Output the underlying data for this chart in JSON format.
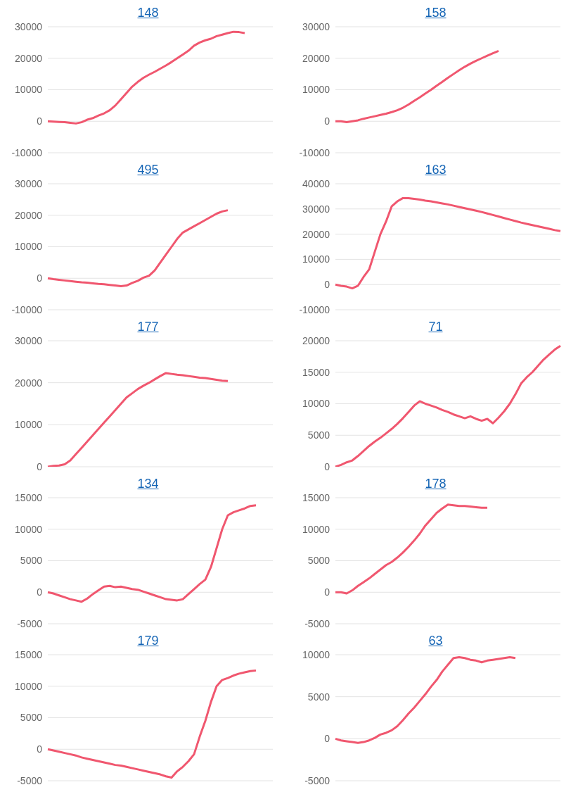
{
  "chart_data": [
    {
      "type": "line",
      "title": "148",
      "color": "#f0576f",
      "grid": "y",
      "tick_labels": "y",
      "marker": "none",
      "ylim": [
        -10000,
        30000
      ],
      "yticks": [
        -10000,
        0,
        10000,
        20000,
        30000
      ],
      "categories": [
        null,
        null,
        null,
        null,
        null,
        null,
        null,
        null,
        null,
        null,
        null,
        null,
        null,
        null,
        null,
        null,
        null,
        null,
        null,
        null,
        null,
        null,
        null,
        null,
        null,
        null,
        null,
        null,
        null,
        null,
        null,
        null,
        null,
        null,
        null,
        null,
        null,
        null,
        null,
        null,
        null
      ],
      "values": [
        0,
        -100,
        -200,
        -300,
        -500,
        -700,
        -300,
        500,
        1000,
        1800,
        2500,
        3500,
        5000,
        7000,
        9000,
        11000,
        12500,
        13800,
        14800,
        15700,
        16700,
        17700,
        18800,
        20000,
        21200,
        22400,
        24000,
        25000,
        25700,
        26200,
        27000,
        27500,
        28000,
        28400,
        28300,
        28000,
        null,
        null,
        null,
        null,
        null
      ]
    },
    {
      "type": "line",
      "title": "158",
      "color": "#f0576f",
      "grid": "y",
      "tick_labels": "y",
      "marker": "none",
      "ylim": [
        -10000,
        30000
      ],
      "yticks": [
        -10000,
        0,
        10000,
        20000,
        30000
      ],
      "categories": [
        null,
        null,
        null,
        null,
        null,
        null,
        null,
        null,
        null,
        null,
        null,
        null,
        null,
        null,
        null,
        null,
        null,
        null,
        null,
        null,
        null,
        null,
        null,
        null,
        null,
        null,
        null,
        null,
        null,
        null,
        null,
        null,
        null,
        null,
        null,
        null,
        null,
        null,
        null,
        null,
        null
      ],
      "values": [
        0,
        0,
        -300,
        0,
        300,
        800,
        1200,
        1600,
        2000,
        2400,
        2900,
        3500,
        4300,
        5300,
        6500,
        7600,
        8800,
        10000,
        11300,
        12500,
        13800,
        15000,
        16200,
        17300,
        18300,
        19200,
        20000,
        20800,
        21600,
        22300,
        null,
        null,
        null,
        null,
        null,
        null,
        null,
        null,
        null,
        null,
        null
      ]
    },
    {
      "type": "line",
      "title": "495",
      "color": "#f0576f",
      "grid": "y",
      "tick_labels": "y",
      "marker": "none",
      "ylim": [
        -10000,
        30000
      ],
      "yticks": [
        -10000,
        0,
        10000,
        20000,
        30000
      ],
      "categories": [
        null,
        null,
        null,
        null,
        null,
        null,
        null,
        null,
        null,
        null,
        null,
        null,
        null,
        null,
        null,
        null,
        null,
        null,
        null,
        null,
        null,
        null,
        null,
        null,
        null,
        null,
        null,
        null,
        null,
        null,
        null,
        null,
        null,
        null,
        null,
        null,
        null,
        null,
        null,
        null,
        null
      ],
      "values": [
        0,
        -300,
        -500,
        -700,
        -900,
        -1100,
        -1300,
        -1400,
        -1600,
        -1800,
        -1900,
        -2100,
        -2300,
        -2500,
        -2300,
        -1500,
        -800,
        200,
        800,
        2500,
        5000,
        7500,
        10000,
        12500,
        14500,
        15500,
        16500,
        17500,
        18500,
        19500,
        20500,
        21200,
        21600,
        null,
        null,
        null,
        null,
        null,
        null,
        null,
        null
      ]
    },
    {
      "type": "line",
      "title": "163",
      "color": "#f0576f",
      "grid": "y",
      "tick_labels": "y",
      "marker": "none",
      "ylim": [
        -10000,
        40000
      ],
      "yticks": [
        -10000,
        0,
        10000,
        20000,
        30000,
        40000
      ],
      "categories": [
        null,
        null,
        null,
        null,
        null,
        null,
        null,
        null,
        null,
        null,
        null,
        null,
        null,
        null,
        null,
        null,
        null,
        null,
        null,
        null,
        null,
        null,
        null,
        null,
        null,
        null,
        null,
        null,
        null,
        null,
        null,
        null,
        null,
        null,
        null,
        null,
        null,
        null,
        null,
        null,
        null
      ],
      "values": [
        0,
        -500,
        -800,
        -1500,
        -500,
        3000,
        6000,
        13000,
        20000,
        25000,
        31000,
        33000,
        34300,
        34300,
        34000,
        33700,
        33300,
        33000,
        32600,
        32200,
        31800,
        31300,
        30800,
        30300,
        29800,
        29300,
        28800,
        28200,
        27600,
        27000,
        26400,
        25800,
        25200,
        24600,
        24100,
        23600,
        23100,
        22600,
        22100,
        21600,
        21200
      ]
    },
    {
      "type": "line",
      "title": "177",
      "color": "#f0576f",
      "grid": "y",
      "tick_labels": "y",
      "marker": "none",
      "ylim": [
        0,
        30000
      ],
      "yticks": [
        0,
        10000,
        20000,
        30000
      ],
      "categories": [
        null,
        null,
        null,
        null,
        null,
        null,
        null,
        null,
        null,
        null,
        null,
        null,
        null,
        null,
        null,
        null,
        null,
        null,
        null,
        null,
        null,
        null,
        null,
        null,
        null,
        null,
        null,
        null,
        null,
        null,
        null,
        null,
        null,
        null,
        null,
        null,
        null,
        null,
        null,
        null,
        null
      ],
      "values": [
        0,
        200,
        300,
        600,
        1500,
        3000,
        4500,
        6000,
        7500,
        9000,
        10500,
        12000,
        13500,
        15000,
        16500,
        17500,
        18500,
        19300,
        20000,
        20800,
        21600,
        22300,
        22100,
        21900,
        21800,
        21600,
        21400,
        21200,
        21100,
        20900,
        20700,
        20500,
        20400,
        null,
        null,
        null,
        null,
        null,
        null,
        null,
        null
      ]
    },
    {
      "type": "line",
      "title": "71",
      "color": "#f0576f",
      "grid": "y",
      "tick_labels": "y",
      "marker": "none",
      "ylim": [
        0,
        20000
      ],
      "yticks": [
        0,
        5000,
        10000,
        15000,
        20000
      ],
      "categories": [
        null,
        null,
        null,
        null,
        null,
        null,
        null,
        null,
        null,
        null,
        null,
        null,
        null,
        null,
        null,
        null,
        null,
        null,
        null,
        null,
        null,
        null,
        null,
        null,
        null,
        null,
        null,
        null,
        null,
        null,
        null,
        null,
        null,
        null,
        null,
        null,
        null,
        null,
        null,
        null,
        null
      ],
      "values": [
        0,
        300,
        700,
        1000,
        1700,
        2500,
        3300,
        4000,
        4600,
        5300,
        6000,
        6800,
        7700,
        8700,
        9700,
        10400,
        10000,
        9700,
        9400,
        9000,
        8700,
        8300,
        8000,
        7700,
        8000,
        7600,
        7300,
        7600,
        6900,
        7800,
        8800,
        10000,
        11500,
        13200,
        14200,
        15000,
        16000,
        17000,
        17800,
        18600,
        19200
      ]
    },
    {
      "type": "line",
      "title": "134",
      "color": "#f0576f",
      "grid": "y",
      "tick_labels": "y",
      "marker": "none",
      "ylim": [
        -5000,
        15000
      ],
      "yticks": [
        -5000,
        0,
        5000,
        10000,
        15000
      ],
      "categories": [
        null,
        null,
        null,
        null,
        null,
        null,
        null,
        null,
        null,
        null,
        null,
        null,
        null,
        null,
        null,
        null,
        null,
        null,
        null,
        null,
        null,
        null,
        null,
        null,
        null,
        null,
        null,
        null,
        null,
        null,
        null,
        null,
        null,
        null,
        null,
        null,
        null,
        null,
        null,
        null,
        null
      ],
      "values": [
        0,
        -200,
        -500,
        -800,
        -1100,
        -1300,
        -1500,
        -1000,
        -300,
        300,
        900,
        1000,
        800,
        900,
        700,
        500,
        400,
        100,
        -200,
        -500,
        -800,
        -1100,
        -1200,
        -1300,
        -1100,
        -300,
        500,
        1300,
        2000,
        4000,
        7000,
        10000,
        12200,
        12700,
        13000,
        13300,
        13700,
        13800,
        null,
        null,
        null
      ]
    },
    {
      "type": "line",
      "title": "178",
      "color": "#f0576f",
      "grid": "y",
      "tick_labels": "y",
      "marker": "none",
      "ylim": [
        -5000,
        15000
      ],
      "yticks": [
        -5000,
        0,
        5000,
        10000,
        15000
      ],
      "categories": [
        null,
        null,
        null,
        null,
        null,
        null,
        null,
        null,
        null,
        null,
        null,
        null,
        null,
        null,
        null,
        null,
        null,
        null,
        null,
        null,
        null,
        null,
        null,
        null,
        null,
        null,
        null,
        null,
        null,
        null,
        null,
        null,
        null,
        null,
        null,
        null,
        null,
        null,
        null,
        null,
        null
      ],
      "values": [
        0,
        0,
        -200,
        300,
        1000,
        1600,
        2200,
        2900,
        3600,
        4300,
        4800,
        5500,
        6300,
        7200,
        8200,
        9300,
        10600,
        11600,
        12600,
        13300,
        13900,
        13800,
        13700,
        13700,
        13600,
        13500,
        13400,
        13400,
        null,
        null,
        null,
        null,
        null,
        null,
        null,
        null,
        null,
        null,
        null,
        null,
        null
      ]
    },
    {
      "type": "line",
      "title": "179",
      "color": "#f0576f",
      "grid": "y",
      "tick_labels": "y",
      "marker": "none",
      "ylim": [
        -5000,
        15000
      ],
      "yticks": [
        -5000,
        0,
        5000,
        10000,
        15000
      ],
      "categories": [
        null,
        null,
        null,
        null,
        null,
        null,
        null,
        null,
        null,
        null,
        null,
        null,
        null,
        null,
        null,
        null,
        null,
        null,
        null,
        null,
        null,
        null,
        null,
        null,
        null,
        null,
        null,
        null,
        null,
        null,
        null,
        null,
        null,
        null,
        null,
        null,
        null,
        null,
        null,
        null,
        null
      ],
      "values": [
        0,
        -200,
        -400,
        -600,
        -800,
        -1000,
        -1300,
        -1500,
        -1700,
        -1900,
        -2100,
        -2300,
        -2500,
        -2600,
        -2800,
        -3000,
        -3200,
        -3400,
        -3600,
        -3800,
        -4000,
        -4300,
        -4500,
        -3500,
        -2800,
        -1900,
        -800,
        2000,
        4500,
        7500,
        10000,
        11000,
        11300,
        11700,
        12000,
        12200,
        12400,
        12500,
        null,
        null,
        null
      ]
    },
    {
      "type": "line",
      "title": "63",
      "color": "#f0576f",
      "grid": "y",
      "tick_labels": "y",
      "marker": "none",
      "ylim": [
        -5000,
        10000
      ],
      "yticks": [
        -5000,
        0,
        5000,
        10000
      ],
      "categories": [
        null,
        null,
        null,
        null,
        null,
        null,
        null,
        null,
        null,
        null,
        null,
        null,
        null,
        null,
        null,
        null,
        null,
        null,
        null,
        null,
        null,
        null,
        null,
        null,
        null,
        null,
        null,
        null,
        null,
        null,
        null,
        null,
        null,
        null,
        null,
        null,
        null,
        null,
        null,
        null,
        null
      ],
      "values": [
        0,
        -200,
        -300,
        -400,
        -500,
        -400,
        -200,
        100,
        500,
        700,
        1000,
        1500,
        2200,
        3000,
        3700,
        4500,
        5300,
        6200,
        7000,
        8000,
        8800,
        9600,
        9700,
        9600,
        9400,
        9300,
        9100,
        9300,
        9400,
        9500,
        9600,
        9700,
        9600,
        null,
        null,
        null,
        null,
        null,
        null,
        null,
        null
      ]
    }
  ]
}
